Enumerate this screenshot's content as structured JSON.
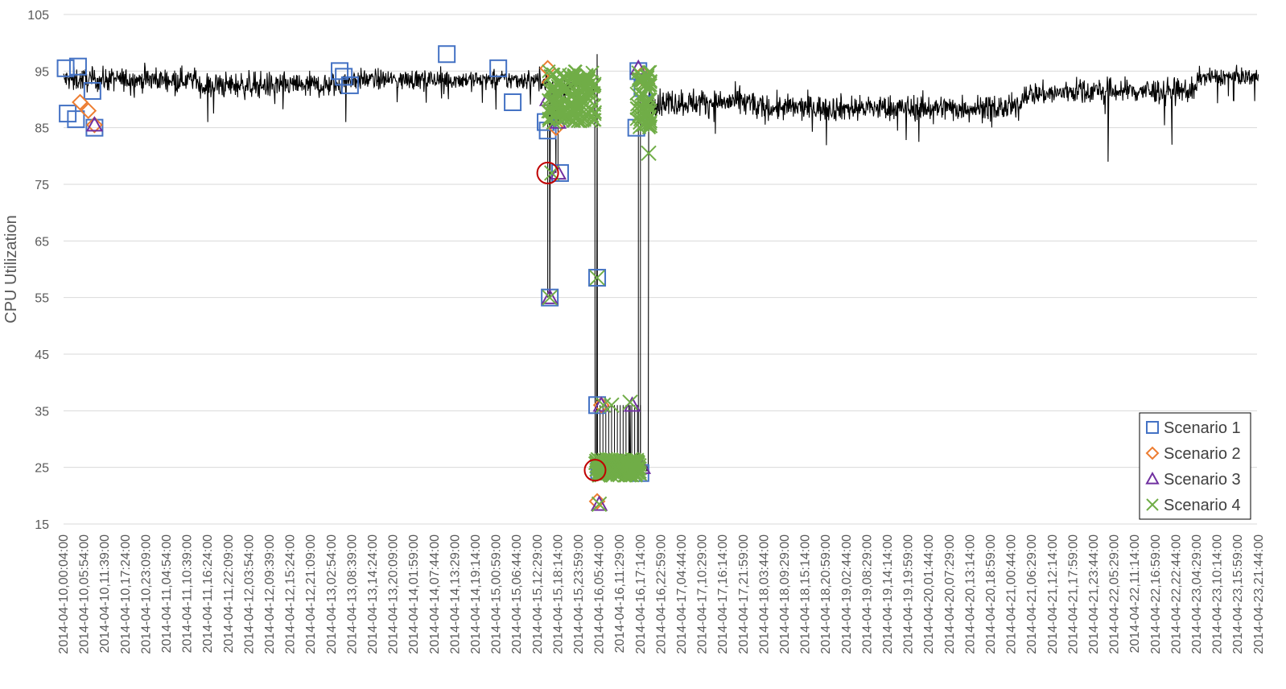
{
  "chart_data": {
    "type": "line",
    "title": "",
    "xlabel": "",
    "ylabel": "CPU Utilization",
    "ylim": [
      15,
      105
    ],
    "yticks": [
      15,
      25,
      35,
      45,
      55,
      65,
      75,
      85,
      95,
      105
    ],
    "grid": "horizontal",
    "legend_position": "bottom-right",
    "x_tick_labels": [
      "2014-04-10,00:04:00",
      "2014-04-10,05:54:00",
      "2014-04-10,11:39:00",
      "2014-04-10,17:24:00",
      "2014-04-10,23:09:00",
      "2014-04-11,04:54:00",
      "2014-04-11,10:39:00",
      "2014-04-11,16:24:00",
      "2014-04-11,22:09:00",
      "2014-04-12,03:54:00",
      "2014-04-12,09:39:00",
      "2014-04-12,15:24:00",
      "2014-04-12,21:09:00",
      "2014-04-13,02:54:00",
      "2014-04-13,08:39:00",
      "2014-04-13,14:24:00",
      "2014-04-13,20:09:00",
      "2014-04-14,01:59:00",
      "2014-04-14,07:44:00",
      "2014-04-14,13:29:00",
      "2014-04-14,19:14:00",
      "2014-04-15,00:59:00",
      "2014-04-15,06:44:00",
      "2014-04-15,12:29:00",
      "2014-04-15,18:14:00",
      "2014-04-15,23:59:00",
      "2014-04-16,05:44:00",
      "2014-04-16,11:29:00",
      "2014-04-16,17:14:00",
      "2014-04-16,22:59:00",
      "2014-04-17,04:44:00",
      "2014-04-17,10:29:00",
      "2014-04-17,16:14:00",
      "2014-04-17,21:59:00",
      "2014-04-18,03:44:00",
      "2014-04-18,09:29:00",
      "2014-04-18,15:14:00",
      "2014-04-18,20:59:00",
      "2014-04-19,02:44:00",
      "2014-04-19,08:29:00",
      "2014-04-19,14:14:00",
      "2014-04-19,19:59:00",
      "2014-04-20,01:44:00",
      "2014-04-20,07:29:00",
      "2014-04-20,13:14:00",
      "2014-04-20,18:59:00",
      "2014-04-21,00:44:00",
      "2014-04-21,06:29:00",
      "2014-04-21,12:14:00",
      "2014-04-21,17:59:00",
      "2014-04-21,23:44:00",
      "2014-04-22,05:29:00",
      "2014-04-22,11:14:00",
      "2014-04-22,16:59:00",
      "2014-04-22,22:44:00",
      "2014-04-23,04:29:00",
      "2014-04-23,10:14:00",
      "2014-04-23,15:59:00",
      "2014-04-23,21:44:00"
    ],
    "base_line": {
      "color": "#000000",
      "segments": [
        {
          "x": [
            0,
            6.5
          ],
          "base": 93.5,
          "noise": 2.5
        },
        {
          "x": [
            6.5,
            13.5
          ],
          "base": 92.5,
          "noise": 2.8
        },
        {
          "x": [
            13.5,
            23.5
          ],
          "base": 93.5,
          "noise": 2.2
        },
        {
          "x": [
            23.5,
            25.8
          ],
          "base": 92,
          "noise": 2.5
        },
        {
          "x": [
            25.8,
            28.4
          ],
          "base": 25,
          "noise": 0.8
        },
        {
          "x": [
            28.4,
            33.5
          ],
          "base": 89.5,
          "noise": 3
        },
        {
          "x": [
            33.5,
            46.5
          ],
          "base": 88.5,
          "noise": 2.8
        },
        {
          "x": [
            46.5,
            48.5
          ],
          "base": 91,
          "noise": 2.5
        },
        {
          "x": [
            48.5,
            55
          ],
          "base": 91.5,
          "noise": 2.8
        },
        {
          "x": [
            55,
            58
          ],
          "base": 94,
          "noise": 1.8
        }
      ],
      "spikes": [
        {
          "x": 7.0,
          "y": 86
        },
        {
          "x": 13.7,
          "y": 86
        },
        {
          "x": 23.6,
          "y": 55
        },
        {
          "x": 23.9,
          "y": 77
        },
        {
          "x": 25.9,
          "y": 98
        },
        {
          "x": 27.5,
          "y": 36
        },
        {
          "x": 50.7,
          "y": 79
        },
        {
          "x": 53.8,
          "y": 82
        }
      ]
    },
    "anomaly_circles": [
      {
        "x": 23.5,
        "y": 77
      },
      {
        "x": 25.8,
        "y": 24.5
      }
    ],
    "series": [
      {
        "name": "Scenario 1",
        "marker": "square",
        "color": "#4472C4",
        "points": [
          [
            0.1,
            95.5
          ],
          [
            0.2,
            87.5
          ],
          [
            0.7,
            95.8
          ],
          [
            0.6,
            86.5
          ],
          [
            1.4,
            91.5
          ],
          [
            1.5,
            85
          ],
          [
            13.4,
            95
          ],
          [
            13.6,
            94
          ],
          [
            13.9,
            92.5
          ],
          [
            18.6,
            98
          ],
          [
            21.1,
            95.5
          ],
          [
            21.8,
            89.5
          ],
          [
            23.4,
            86
          ],
          [
            23.5,
            84.5
          ],
          [
            23.6,
            55
          ],
          [
            24.1,
            77
          ],
          [
            25.9,
            58.5
          ],
          [
            25.9,
            36
          ],
          [
            26.0,
            24.5
          ],
          [
            27.8,
            85
          ],
          [
            27.9,
            95
          ],
          [
            28.0,
            24
          ],
          [
            28.1,
            92
          ]
        ]
      },
      {
        "name": "Scenario 2",
        "marker": "diamond",
        "color": "#ED7D31",
        "points": [
          [
            0.8,
            89.5
          ],
          [
            1.2,
            88
          ],
          [
            1.5,
            85.5
          ],
          [
            23.5,
            95.5
          ],
          [
            23.6,
            93
          ],
          [
            23.9,
            85
          ],
          [
            25.9,
            19
          ],
          [
            26.1,
            36
          ],
          [
            28.1,
            94.5
          ],
          [
            28.3,
            93
          ]
        ]
      },
      {
        "name": "Scenario 3",
        "marker": "triangle",
        "color": "#7030A0",
        "points": [
          [
            1.5,
            85.5
          ],
          [
            23.5,
            90
          ],
          [
            23.6,
            55
          ],
          [
            24.0,
            77
          ],
          [
            24.0,
            86
          ],
          [
            26.0,
            18.5
          ],
          [
            26.1,
            36
          ],
          [
            26.3,
            24
          ],
          [
            27.6,
            36
          ],
          [
            27.9,
            95.5
          ],
          [
            28.1,
            25
          ]
        ]
      },
      {
        "name": "Scenario 4",
        "marker": "x",
        "color": "#70AD47",
        "points": [
          [
            23.6,
            55
          ],
          [
            23.7,
            77
          ],
          [
            23.8,
            86
          ],
          [
            24.0,
            89
          ],
          [
            24.2,
            92
          ],
          [
            24.5,
            87
          ],
          [
            24.8,
            94
          ],
          [
            25.1,
            90
          ],
          [
            25.4,
            92
          ],
          [
            25.7,
            91
          ],
          [
            25.9,
            58.5
          ],
          [
            26.0,
            18.5
          ],
          [
            26.2,
            36
          ],
          [
            26.6,
            36
          ],
          [
            27.0,
            25
          ],
          [
            27.5,
            36.5
          ],
          [
            28.0,
            86
          ],
          [
            28.2,
            93
          ],
          [
            28.4,
            80.5
          ],
          [
            28.3,
            89
          ]
        ],
        "clusters": [
          {
            "x": [
              23.5,
              25.8
            ],
            "y": [
              86,
              95
            ],
            "count": 150
          },
          {
            "x": [
              25.8,
              28.0
            ],
            "y": [
              23.5,
              26.5
            ],
            "count": 180
          },
          {
            "x": [
              27.8,
              28.5
            ],
            "y": [
              85,
              95
            ],
            "count": 60
          }
        ]
      }
    ],
    "drop_lines": [
      {
        "x": 23.5,
        "y": [
          55,
          86
        ]
      },
      {
        "x": 23.6,
        "y": [
          55,
          85
        ]
      },
      {
        "x": 24.0,
        "y": [
          77,
          90
        ]
      },
      {
        "x": 25.9,
        "y": [
          24,
          92
        ]
      },
      {
        "x": 27.9,
        "y": [
          24,
          90
        ]
      },
      {
        "x": 28.0,
        "y": [
          25,
          92
        ]
      }
    ],
    "vertical_bars_range": {
      "x": [
        25.9,
        28.0
      ],
      "y": [
        24,
        36
      ],
      "count": 16
    }
  }
}
